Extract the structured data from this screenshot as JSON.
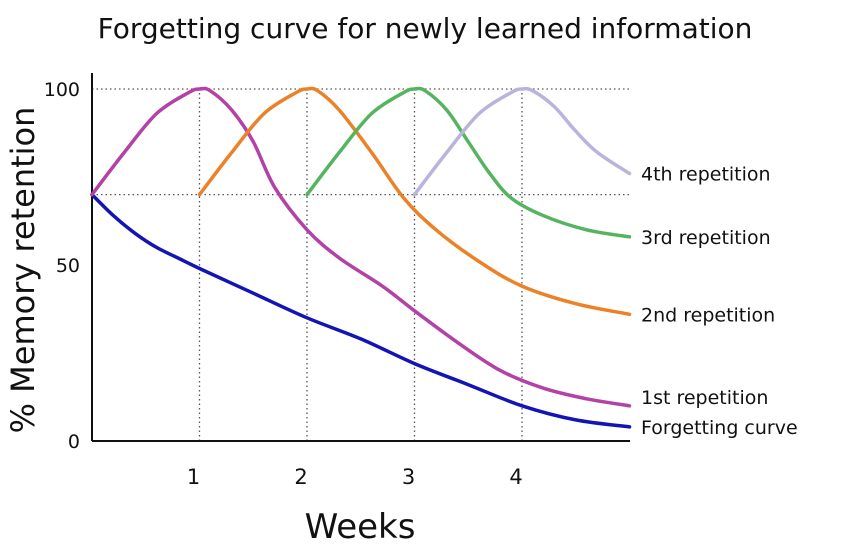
{
  "chart_data": {
    "type": "line",
    "title": "Forgetting curve for newly learned information",
    "xlabel": "Weeks",
    "ylabel": "% Memory retention",
    "x_ticks": [
      1,
      2,
      3,
      4
    ],
    "x_tick_labels": [
      "1",
      "2",
      "3",
      "4"
    ],
    "y_ticks": [
      0,
      50,
      100
    ],
    "y_tick_labels": [
      "0",
      "50",
      "100"
    ],
    "xlim": [
      0,
      5
    ],
    "ylim": [
      0,
      100
    ],
    "grid": "dotted guides at weeks 1-4 and at 100% and 70%",
    "guide_y_values": [
      100,
      70
    ],
    "series": [
      {
        "name": "Forgetting curve",
        "color": "#1414b4",
        "x": [
          0,
          0.2,
          0.4,
          0.6,
          0.8,
          1.0,
          1.5,
          2.0,
          2.5,
          3.0,
          3.5,
          4.0,
          4.5,
          5.0
        ],
        "y": [
          70,
          64,
          59,
          55,
          52,
          49,
          42,
          35,
          29,
          22,
          16,
          10,
          6,
          4
        ]
      },
      {
        "name": "1st repetition",
        "color": "#b441a5",
        "x": [
          0,
          0.3,
          0.6,
          0.9,
          1.0,
          1.1,
          1.3,
          1.5,
          1.7,
          2.0,
          2.3,
          2.7,
          3.0,
          3.4,
          3.8,
          4.2,
          4.6,
          5.0
        ],
        "y": [
          70,
          82,
          93,
          99,
          100,
          99.5,
          94,
          85,
          72,
          60,
          52,
          44,
          37,
          28,
          20,
          15,
          12,
          10
        ]
      },
      {
        "name": "2nd repetition",
        "color": "#eb8228",
        "x": [
          1.0,
          1.3,
          1.6,
          1.9,
          2.0,
          2.1,
          2.3,
          2.6,
          2.9,
          3.2,
          3.6,
          4.0,
          4.5,
          5.0
        ],
        "y": [
          70,
          82,
          93,
          99,
          100,
          99.5,
          94,
          82,
          69,
          60,
          51,
          44,
          39,
          36
        ]
      },
      {
        "name": "3rd repetition",
        "color": "#55b45f",
        "x": [
          2.0,
          2.3,
          2.6,
          2.9,
          3.0,
          3.1,
          3.3,
          3.5,
          3.7,
          3.9,
          4.2,
          4.6,
          5.0
        ],
        "y": [
          70,
          82,
          93,
          99,
          100,
          99.5,
          94,
          85,
          76,
          69,
          64,
          60,
          58
        ]
      },
      {
        "name": "4th repetition",
        "color": "#b9b4dc",
        "x": [
          3.0,
          3.3,
          3.6,
          3.9,
          4.0,
          4.1,
          4.3,
          4.5,
          4.7,
          5.0
        ],
        "y": [
          70,
          82,
          93,
          99,
          100,
          99.5,
          95,
          88,
          82,
          76
        ]
      }
    ]
  }
}
